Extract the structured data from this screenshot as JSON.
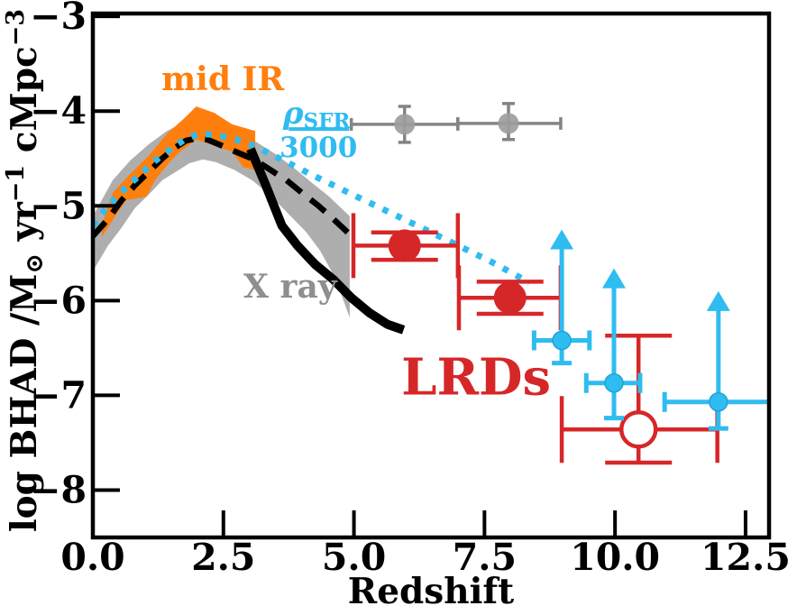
{
  "colors": {
    "orange": "#ff7f0e",
    "red": "#d62728",
    "sky_blue": "#2fbcf0",
    "gray_band": "#aeaeae",
    "gray_marker": "#9d9d9d",
    "gray_errorbar": "#848484",
    "text_gray": "#8f8f8f",
    "black": "#000000"
  },
  "chart_data": {
    "type": "scatter",
    "title": "",
    "xlabel": "Redshift",
    "ylabel": "log BHAD /M⊙ yr−1 cMpc−3",
    "ylabel_parts": [
      {
        "t": "log BHAD /M"
      },
      {
        "t": "⊙",
        "style": "sub"
      },
      {
        "t": " yr"
      },
      {
        "t": "−1",
        "style": "sup"
      },
      {
        "t": " cMpc"
      },
      {
        "t": "−3",
        "style": "sup"
      }
    ],
    "xlim": [
      0,
      12.95
    ],
    "ylim": [
      -8.5,
      -2.97
    ],
    "grid": false,
    "legend_position": "none (inline colored annotations)",
    "xticks": [
      {
        "v": 0.0,
        "label": "0.0"
      },
      {
        "v": 2.5,
        "label": "2.5"
      },
      {
        "v": 5.0,
        "label": "5.0"
      },
      {
        "v": 7.5,
        "label": "7.5"
      },
      {
        "v": 10.0,
        "label": "10.0"
      },
      {
        "v": 12.5,
        "label": "12.5"
      }
    ],
    "yticks": [
      {
        "v": -3,
        "label": "−3"
      },
      {
        "v": -4,
        "label": "−4"
      },
      {
        "v": -5,
        "label": "−5"
      },
      {
        "v": -6,
        "label": "−6"
      },
      {
        "v": -7,
        "label": "−7"
      },
      {
        "v": -8,
        "label": "−8"
      }
    ],
    "annotations": {
      "mid_ir": {
        "text": "mid IR",
        "x": 2.49,
        "y": -3.78,
        "color": "#ff7f0e"
      },
      "rho_sfr": {
        "numerator": "ρ",
        "numerator_sub": "SFR",
        "denominator": "3000",
        "x": 4.32,
        "y": -4.19,
        "color": "#2fbcf0"
      },
      "x_ray": {
        "text": "X ray",
        "x": 3.78,
        "y": -5.97,
        "color": "#8f8f8f"
      },
      "lrds": {
        "text": "LRDs",
        "x": 7.34,
        "y": -6.99,
        "color": "#d62728"
      }
    },
    "series": {
      "x_ray_band": {
        "label": "X ray BHAD uncertainty band",
        "type": "band",
        "color_key": "gray_band",
        "upper": [
          [
            0.0,
            -5.11
          ],
          [
            0.38,
            -4.73
          ],
          [
            0.72,
            -4.52
          ],
          [
            1.07,
            -4.35
          ],
          [
            1.42,
            -4.21
          ],
          [
            1.76,
            -4.11
          ],
          [
            2.11,
            -4.08
          ],
          [
            2.45,
            -4.13
          ],
          [
            2.8,
            -4.22
          ],
          [
            3.14,
            -4.33
          ],
          [
            3.49,
            -4.45
          ],
          [
            3.83,
            -4.59
          ],
          [
            4.18,
            -4.75
          ],
          [
            4.52,
            -4.9
          ],
          [
            4.92,
            -5.11
          ]
        ],
        "lower": [
          [
            0.0,
            -5.69
          ],
          [
            0.29,
            -5.42
          ],
          [
            0.55,
            -5.23
          ],
          [
            0.81,
            -5.02
          ],
          [
            1.07,
            -4.88
          ],
          [
            1.33,
            -4.73
          ],
          [
            1.59,
            -4.64
          ],
          [
            1.85,
            -4.55
          ],
          [
            2.11,
            -4.51
          ],
          [
            2.36,
            -4.54
          ],
          [
            2.71,
            -4.62
          ],
          [
            3.05,
            -4.73
          ],
          [
            3.4,
            -4.89
          ],
          [
            3.74,
            -5.08
          ],
          [
            4.09,
            -5.28
          ],
          [
            4.35,
            -5.47
          ],
          [
            4.61,
            -5.73
          ],
          [
            4.78,
            -5.97
          ],
          [
            4.92,
            -6.18
          ]
        ]
      },
      "mid_ir_band": {
        "label": "mid IR BHAD band",
        "type": "band",
        "color_key": "orange",
        "upper": [
          [
            0.17,
            -5.21
          ],
          [
            0.38,
            -4.86
          ],
          [
            0.72,
            -4.66
          ],
          [
            1.07,
            -4.47
          ],
          [
            1.42,
            -4.24
          ],
          [
            1.76,
            -4.07
          ],
          [
            1.98,
            -3.95
          ],
          [
            2.33,
            -4.02
          ],
          [
            2.67,
            -4.14
          ],
          [
            3.11,
            -4.21
          ]
        ],
        "lower": [
          [
            0.17,
            -5.33
          ],
          [
            0.43,
            -5.11
          ],
          [
            0.64,
            -4.94
          ],
          [
            0.85,
            -4.92
          ],
          [
            1.03,
            -4.9
          ],
          [
            1.19,
            -4.73
          ],
          [
            1.47,
            -4.54
          ],
          [
            1.67,
            -4.43
          ],
          [
            1.98,
            -4.3
          ],
          [
            2.36,
            -4.37
          ],
          [
            2.67,
            -4.43
          ],
          [
            2.88,
            -4.59
          ],
          [
            3.11,
            -4.62
          ]
        ]
      },
      "x_ray_dashed": {
        "label": "X ray BHAD (dashed)",
        "type": "line",
        "style": "dashed",
        "color_key": "black",
        "points": [
          [
            0.0,
            -5.32
          ],
          [
            0.29,
            -5.14
          ],
          [
            0.55,
            -4.94
          ],
          [
            0.81,
            -4.78
          ],
          [
            1.07,
            -4.64
          ],
          [
            1.33,
            -4.5
          ],
          [
            1.59,
            -4.38
          ],
          [
            1.79,
            -4.31
          ],
          [
            1.98,
            -4.29
          ],
          [
            2.19,
            -4.3
          ],
          [
            2.45,
            -4.36
          ],
          [
            2.74,
            -4.43
          ],
          [
            3.09,
            -4.51
          ],
          [
            3.4,
            -4.62
          ],
          [
            3.71,
            -4.73
          ],
          [
            4.0,
            -4.86
          ],
          [
            4.3,
            -4.99
          ],
          [
            4.57,
            -5.12
          ],
          [
            4.82,
            -5.25
          ],
          [
            4.99,
            -5.34
          ]
        ]
      },
      "x_ray_solid": {
        "label": "X ray BHAD decline (thick solid)",
        "type": "line",
        "style": "solid",
        "color_key": "black",
        "points": [
          [
            3.02,
            -4.4
          ],
          [
            3.31,
            -4.78
          ],
          [
            3.62,
            -5.21
          ],
          [
            3.92,
            -5.42
          ],
          [
            4.26,
            -5.62
          ],
          [
            4.61,
            -5.78
          ],
          [
            4.95,
            -5.97
          ],
          [
            5.3,
            -6.13
          ],
          [
            5.64,
            -6.25
          ],
          [
            5.95,
            -6.31
          ]
        ]
      },
      "sfr_dotted": {
        "label": "ρ_SFR/3000 (dotted)",
        "type": "line",
        "style": "dotted",
        "color_key": "sky_blue",
        "points": [
          [
            0.0,
            -5.21
          ],
          [
            0.29,
            -5.0
          ],
          [
            0.55,
            -4.85
          ],
          [
            0.85,
            -4.7
          ],
          [
            1.16,
            -4.54
          ],
          [
            1.47,
            -4.41
          ],
          [
            1.76,
            -4.3
          ],
          [
            2.02,
            -4.24
          ],
          [
            2.36,
            -4.25
          ],
          [
            2.74,
            -4.3
          ],
          [
            3.14,
            -4.38
          ],
          [
            3.57,
            -4.5
          ],
          [
            4.26,
            -4.69
          ],
          [
            5.12,
            -4.92
          ],
          [
            5.99,
            -5.15
          ],
          [
            6.85,
            -5.38
          ],
          [
            7.63,
            -5.59
          ],
          [
            8.36,
            -5.81
          ]
        ]
      },
      "sfr_points": {
        "label": "ρ_SFR/3000 measurements (gray)",
        "type": "errorbar",
        "color_key": "gray_errorbar",
        "points": [
          {
            "x": 5.97,
            "y": -4.14,
            "xerr_lo": 1.02,
            "xerr_hi": 1.02,
            "yerr_up": 0.19,
            "yerr_dn": 0.19
          },
          {
            "x": 7.96,
            "y": -4.13,
            "xerr_lo": 0.97,
            "xerr_hi": 1.0,
            "yerr_up": 0.21,
            "yerr_dn": 0.17
          }
        ]
      },
      "lrd_points": {
        "label": "LRDs (filled red)",
        "type": "errorbar",
        "color_key": "red",
        "points": [
          {
            "x": 5.97,
            "y": -5.42,
            "xerr_lo": 0.98,
            "xerr_hi": 1.02,
            "yerr_up": 0.14,
            "yerr_dn": 0.15
          },
          {
            "x": 7.99,
            "y": -5.97,
            "xerr_lo": 0.98,
            "xerr_hi": 0.97,
            "yerr_up": 0.17,
            "yerr_dn": 0.17
          }
        ]
      },
      "lrd_open_point": {
        "label": "LRDs (open symbol)",
        "type": "errorbar_open",
        "color_key": "red",
        "points": [
          {
            "x": 10.45,
            "y": -7.36,
            "xerr_lo": 1.47,
            "xerr_hi": 1.51,
            "yerr_up": 0.99,
            "yerr_dn": 0.35
          }
        ]
      },
      "high_z_lower_limits": {
        "label": "high-z lower limits (cyan, up arrows)",
        "type": "limit",
        "color_key": "sky_blue",
        "points": [
          {
            "x": 8.98,
            "y": -6.42,
            "xerr_lo": 0.53,
            "xerr_hi": 0.53,
            "yerr_dn": 0.24,
            "arrow_to": -5.25,
            "xcap_hi": true
          },
          {
            "x": 9.98,
            "y": -6.87,
            "xerr_lo": 0.53,
            "xerr_hi": 0.5,
            "yerr_dn": 0.37,
            "arrow_to": -5.66,
            "xcap_hi": true
          },
          {
            "x": 11.98,
            "y": -7.07,
            "xerr_lo": 1.03,
            "xerr_hi": 0.97,
            "yerr_dn": 0.28,
            "arrow_to": -5.9,
            "xcap_hi": false
          }
        ]
      }
    }
  }
}
